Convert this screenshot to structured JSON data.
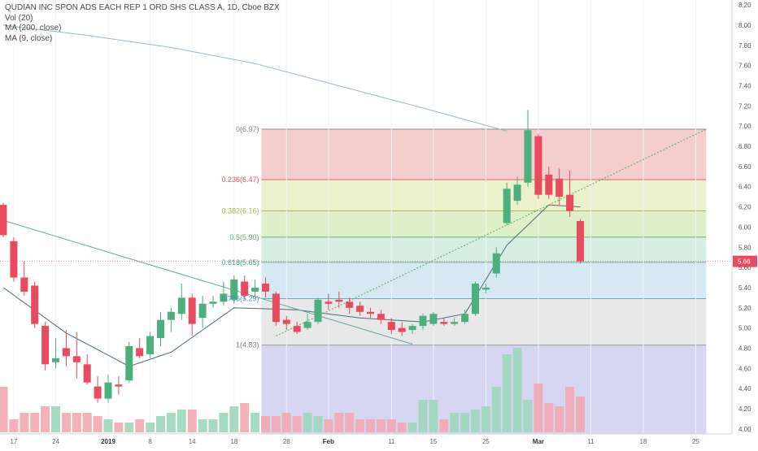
{
  "chart_data": {
    "type": "candlestick",
    "title": "QUDIAN INC SPON ADS EACH REP 1 ORD SHS CLASS A, 1D, Cboe BZX",
    "indicators": [
      "Vol (20)",
      "MA (200, close)",
      "MA (9, close)"
    ],
    "x_tick_labels": [
      "17",
      "24",
      "2019",
      "8",
      "14",
      "18",
      "28",
      "Feb",
      "11",
      "15",
      "25",
      "Mar",
      "11",
      "18",
      "25"
    ],
    "y_tick_labels": [
      "4.00",
      "4.20",
      "4.40",
      "4.60",
      "4.80",
      "5.00",
      "5.20",
      "5.40",
      "5.60",
      "5.80",
      "6.00",
      "6.20",
      "6.40",
      "6.60",
      "6.80",
      "7.00",
      "7.20",
      "7.40",
      "7.60",
      "7.80",
      "8.00",
      "8.20"
    ],
    "ylim": [
      3.95,
      8.25
    ],
    "last_price": "5.66",
    "candles": [
      {
        "o": 6.22,
        "h": 6.24,
        "c": 5.92,
        "l": 5.9
      },
      {
        "o": 5.86,
        "h": 5.9,
        "c": 5.5,
        "l": 5.46
      },
      {
        "o": 5.5,
        "h": 5.66,
        "c": 5.36,
        "l": 5.32
      },
      {
        "o": 5.42,
        "h": 5.46,
        "c": 5.04,
        "l": 5.0
      },
      {
        "o": 5.02,
        "h": 5.06,
        "c": 4.64,
        "l": 4.58
      },
      {
        "o": 4.66,
        "h": 4.9,
        "c": 4.7,
        "l": 4.6
      },
      {
        "o": 4.8,
        "h": 4.98,
        "c": 4.72,
        "l": 4.62
      },
      {
        "o": 4.72,
        "h": 4.96,
        "c": 4.66,
        "l": 4.5
      },
      {
        "o": 4.64,
        "h": 4.74,
        "c": 4.46,
        "l": 4.44
      },
      {
        "o": 4.42,
        "h": 4.52,
        "c": 4.3,
        "l": 4.26
      },
      {
        "o": 4.3,
        "h": 4.54,
        "c": 4.46,
        "l": 4.26
      },
      {
        "o": 4.44,
        "h": 4.52,
        "c": 4.42,
        "l": 4.34
      },
      {
        "o": 4.48,
        "h": 4.86,
        "c": 4.82,
        "l": 4.46
      },
      {
        "o": 4.8,
        "h": 4.9,
        "c": 4.72,
        "l": 4.7
      },
      {
        "o": 4.74,
        "h": 4.96,
        "c": 4.92,
        "l": 4.7
      },
      {
        "o": 4.9,
        "h": 5.16,
        "c": 5.08,
        "l": 4.82
      },
      {
        "o": 5.08,
        "h": 5.2,
        "c": 5.16,
        "l": 4.96
      },
      {
        "o": 5.14,
        "h": 5.44,
        "c": 5.3,
        "l": 5.08
      },
      {
        "o": 5.3,
        "h": 5.34,
        "c": 5.04,
        "l": 4.92
      },
      {
        "o": 5.1,
        "h": 5.32,
        "c": 5.24,
        "l": 5.0
      },
      {
        "o": 5.24,
        "h": 5.32,
        "c": 5.26,
        "l": 5.2
      },
      {
        "o": 5.26,
        "h": 5.46,
        "c": 5.34,
        "l": 5.22
      },
      {
        "o": 5.28,
        "h": 5.52,
        "c": 5.48,
        "l": 5.24
      },
      {
        "o": 5.46,
        "h": 5.52,
        "c": 5.32,
        "l": 5.28
      },
      {
        "o": 5.36,
        "h": 5.48,
        "c": 5.4,
        "l": 5.3
      },
      {
        "o": 5.44,
        "h": 5.5,
        "c": 5.36,
        "l": 5.3
      },
      {
        "o": 5.34,
        "h": 5.36,
        "c": 5.06,
        "l": 5.02
      },
      {
        "o": 5.08,
        "h": 5.12,
        "c": 5.04,
        "l": 4.98
      },
      {
        "o": 5.02,
        "h": 5.06,
        "c": 4.96,
        "l": 4.94
      },
      {
        "o": 5.0,
        "h": 5.14,
        "c": 5.06,
        "l": 4.98
      },
      {
        "o": 5.06,
        "h": 5.3,
        "c": 5.28,
        "l": 5.04
      },
      {
        "o": 5.26,
        "h": 5.34,
        "c": 5.24,
        "l": 5.18
      },
      {
        "o": 5.28,
        "h": 5.36,
        "c": 5.26,
        "l": 5.2
      },
      {
        "o": 5.26,
        "h": 5.3,
        "c": 5.2,
        "l": 5.14
      },
      {
        "o": 5.22,
        "h": 5.26,
        "c": 5.16,
        "l": 5.12
      },
      {
        "o": 5.16,
        "h": 5.2,
        "c": 5.14,
        "l": 5.1
      },
      {
        "o": 5.14,
        "h": 5.18,
        "c": 5.08,
        "l": 5.04
      },
      {
        "o": 5.06,
        "h": 5.1,
        "c": 4.98,
        "l": 4.94
      },
      {
        "o": 5.0,
        "h": 5.06,
        "c": 4.96,
        "l": 4.92
      },
      {
        "o": 4.98,
        "h": 5.04,
        "c": 5.02,
        "l": 4.94
      },
      {
        "o": 5.02,
        "h": 5.14,
        "c": 5.12,
        "l": 4.98
      },
      {
        "o": 5.04,
        "h": 5.16,
        "c": 5.14,
        "l": 5.02
      },
      {
        "o": 5.06,
        "h": 5.1,
        "c": 5.04,
        "l": 5.02
      },
      {
        "o": 5.04,
        "h": 5.1,
        "c": 5.06,
        "l": 5.02
      },
      {
        "o": 5.06,
        "h": 5.18,
        "c": 5.14,
        "l": 5.04
      },
      {
        "o": 5.14,
        "h": 5.46,
        "c": 5.44,
        "l": 5.12
      },
      {
        "o": 5.38,
        "h": 5.44,
        "c": 5.4,
        "l": 5.34
      },
      {
        "o": 5.54,
        "h": 5.8,
        "c": 5.74,
        "l": 5.5
      },
      {
        "o": 6.04,
        "h": 6.44,
        "c": 6.38,
        "l": 6.02
      },
      {
        "o": 6.26,
        "h": 6.5,
        "c": 6.42,
        "l": 6.22
      },
      {
        "o": 6.44,
        "h": 7.16,
        "c": 6.96,
        "l": 6.4
      },
      {
        "o": 6.9,
        "h": 6.92,
        "c": 6.32,
        "l": 6.28
      },
      {
        "o": 6.52,
        "h": 6.6,
        "c": 6.32,
        "l": 6.28
      },
      {
        "o": 6.48,
        "h": 6.58,
        "c": 6.3,
        "l": 6.22
      },
      {
        "o": 6.32,
        "h": 6.56,
        "c": 6.16,
        "l": 6.1
      },
      {
        "o": 6.06,
        "h": 6.08,
        "c": 5.66,
        "l": 5.64
      }
    ],
    "volume_panel_note": "volume bars sit in the lower band, last 16 highest",
    "volume": [
      14,
      4,
      6,
      6,
      8,
      8,
      6,
      6,
      6,
      5,
      4,
      3,
      3,
      4,
      3,
      5,
      6,
      7,
      7,
      4,
      4,
      6,
      8,
      9,
      6,
      5,
      5,
      6,
      5,
      6,
      5,
      4,
      6,
      6,
      4,
      4,
      4,
      4,
      3,
      3,
      10,
      10,
      4,
      6,
      6,
      7,
      8,
      14,
      24,
      26,
      10,
      15,
      9,
      8,
      14,
      11
    ],
    "moving_average_200": [
      [
        0,
        8.0
      ],
      [
        8,
        7.9
      ],
      [
        16,
        7.78
      ],
      [
        24,
        7.62
      ],
      [
        32,
        7.4
      ],
      [
        40,
        7.18
      ],
      [
        48,
        6.95
      ]
    ],
    "moving_average_9": [
      [
        0,
        5.4
      ],
      [
        6,
        4.95
      ],
      [
        12,
        4.62
      ],
      [
        16,
        4.76
      ],
      [
        22,
        5.2
      ],
      [
        28,
        5.18
      ],
      [
        34,
        5.1
      ],
      [
        40,
        5.06
      ],
      [
        44,
        5.14
      ],
      [
        48,
        5.82
      ],
      [
        52,
        6.22
      ],
      [
        55,
        6.2
      ]
    ],
    "trendline_descending": [
      [
        -10,
        6.38
      ],
      [
        39,
        4.84
      ]
    ],
    "trendline_dotted": [
      [
        26,
        4.92
      ],
      [
        67,
        6.97
      ]
    ],
    "fibonacci": {
      "levels": [
        {
          "label": "0(6.97)",
          "value": 6.97,
          "color": "#808080",
          "fill": "#f2c4c4"
        },
        {
          "label": "0.236(6.47)",
          "value": 6.47,
          "color": "#e05060",
          "fill": "#e8eec4"
        },
        {
          "label": "0.382(6.16)",
          "value": 6.16,
          "color": "#a0b040",
          "fill": "#d8ecc0"
        },
        {
          "label": "0.5(5.90)",
          "value": 5.9,
          "color": "#50b060",
          "fill": "#cfeadc"
        },
        {
          "label": "0.618(5.65)",
          "value": 5.65,
          "color": "#40a090",
          "fill": "#cfe4ee"
        },
        {
          "label": "0.786(5.29)",
          "value": 5.29,
          "color": "#5090b0",
          "fill": "#e4e4e4"
        },
        {
          "label": "1(4.83)",
          "value": 4.83,
          "color": "#808080",
          "fill": "#cfcff0"
        }
      ],
      "bottom_band_low": 3.95
    },
    "colors": {
      "up": "#4caf7d",
      "down": "#e84a5f",
      "ma200": "#9bb8c8",
      "ma9": "#4a6a7a",
      "trend": "#5aa8a0"
    }
  }
}
